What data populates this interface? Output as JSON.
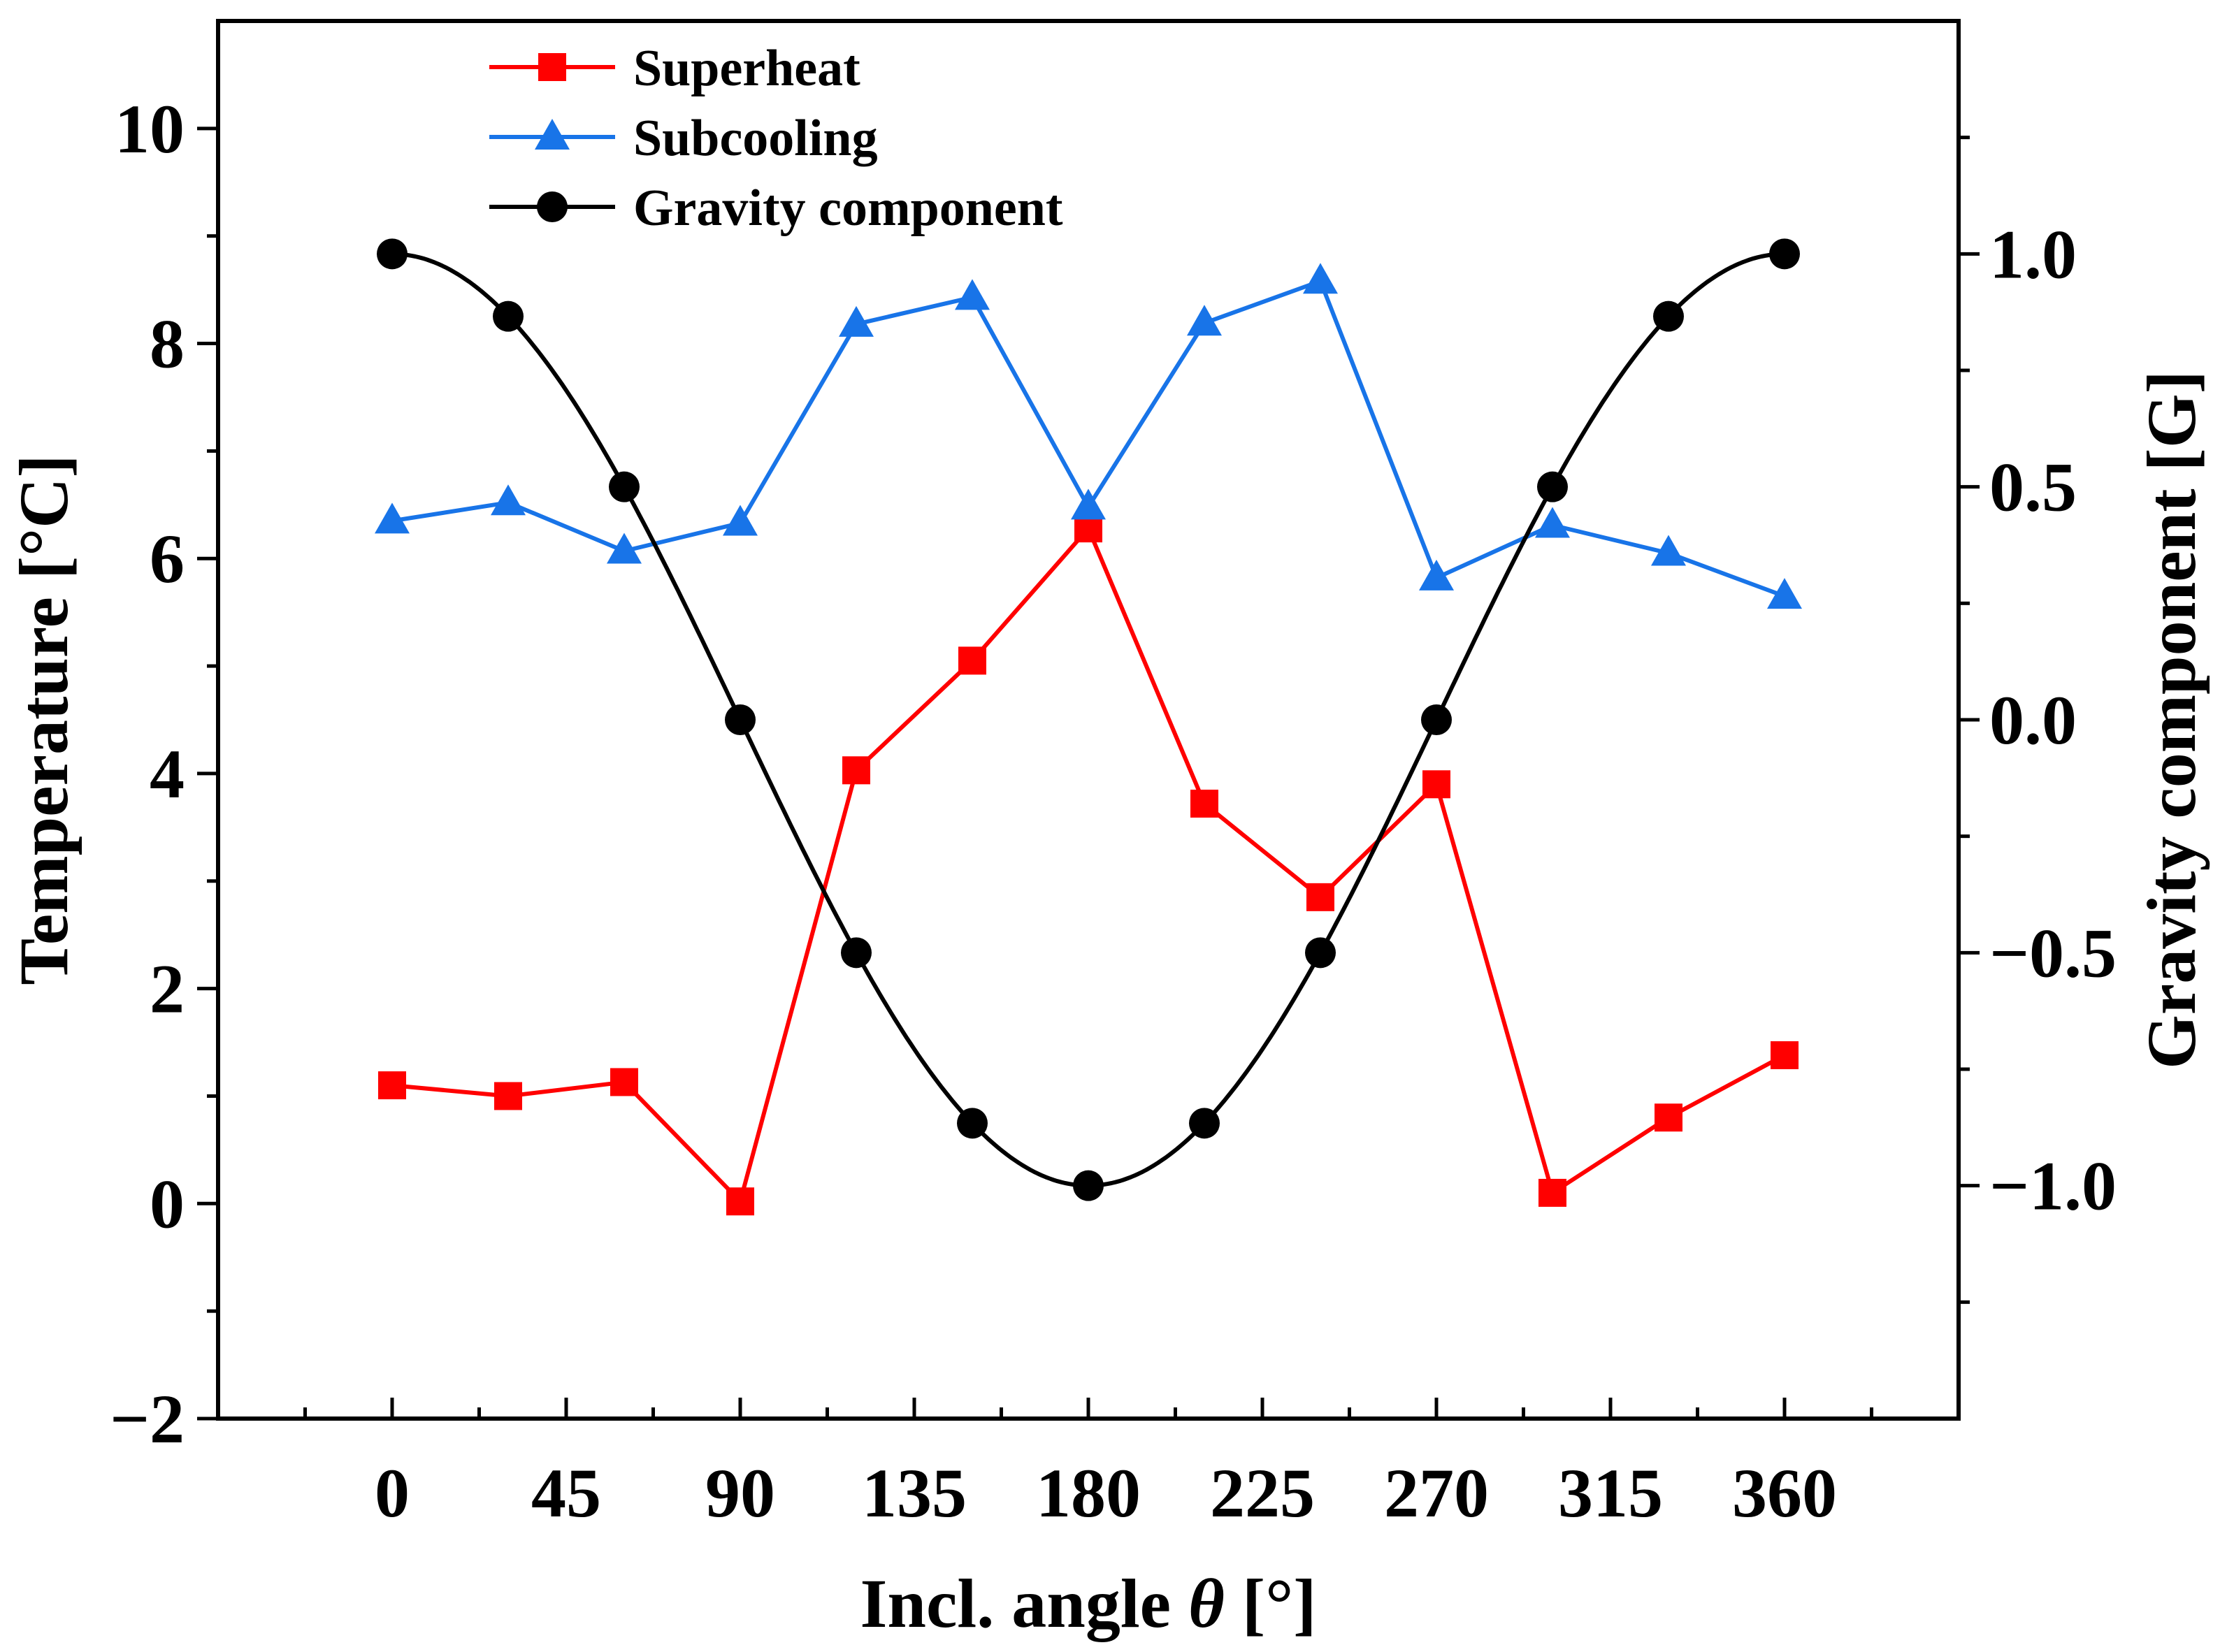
{
  "chart_data": {
    "type": "line",
    "title": "",
    "xlabel_prefix": "Incl. angle ",
    "xlabel_symbol": "θ",
    "xlabel_suffix": " [°]",
    "ylabel": "Temperature [°C]",
    "y2label": "Gravity component [G]",
    "xlim": [
      -45,
      405
    ],
    "ylim": [
      -2,
      11
    ],
    "y2lim": [
      -1.5,
      1.5
    ],
    "xticks": [
      0,
      45,
      90,
      135,
      180,
      225,
      270,
      315,
      360
    ],
    "xtick_labels": [
      "0",
      "45",
      "90",
      "135",
      "180",
      "225",
      "270",
      "315",
      "360"
    ],
    "yticks": [
      -2,
      0,
      2,
      4,
      6,
      8,
      10
    ],
    "ytick_labels": [
      "−2",
      "0",
      "2",
      "4",
      "6",
      "8",
      "10"
    ],
    "y2ticks": [
      -1.0,
      -0.5,
      0.0,
      0.5,
      1.0
    ],
    "y2tick_labels": [
      "−1.0",
      "−0.5",
      "0.0",
      "0.5",
      "1.0"
    ],
    "grid": false,
    "legend_position": "top-left",
    "series": [
      {
        "name": "Superheat",
        "axis": "left",
        "color": "#ff0000",
        "marker": "square",
        "smooth": false,
        "x": [
          0,
          30,
          60,
          90,
          120,
          150,
          180,
          210,
          240,
          270,
          300,
          330,
          360
        ],
        "values": [
          1.1,
          1.0,
          1.13,
          0.02,
          4.03,
          5.05,
          6.28,
          3.72,
          2.85,
          3.9,
          0.1,
          0.8,
          1.38
        ]
      },
      {
        "name": "Subcooling",
        "axis": "left",
        "color": "#1874e8",
        "marker": "triangle",
        "smooth": false,
        "x": [
          0,
          30,
          60,
          90,
          120,
          150,
          180,
          210,
          240,
          270,
          300,
          330,
          360
        ],
        "values": [
          6.35,
          6.52,
          6.07,
          6.33,
          8.18,
          8.43,
          6.48,
          8.19,
          8.58,
          5.82,
          6.31,
          6.05,
          5.65
        ]
      },
      {
        "name": "Gravity component",
        "axis": "right",
        "color": "#000000",
        "marker": "circle",
        "smooth": true,
        "x": [
          0,
          30,
          60,
          90,
          120,
          150,
          180,
          210,
          240,
          270,
          300,
          330,
          360
        ],
        "values": [
          1.0,
          0.866,
          0.5,
          0.0,
          -0.5,
          -0.866,
          -1.0,
          -0.866,
          -0.5,
          0.0,
          0.5,
          0.866,
          1.0
        ]
      }
    ]
  }
}
